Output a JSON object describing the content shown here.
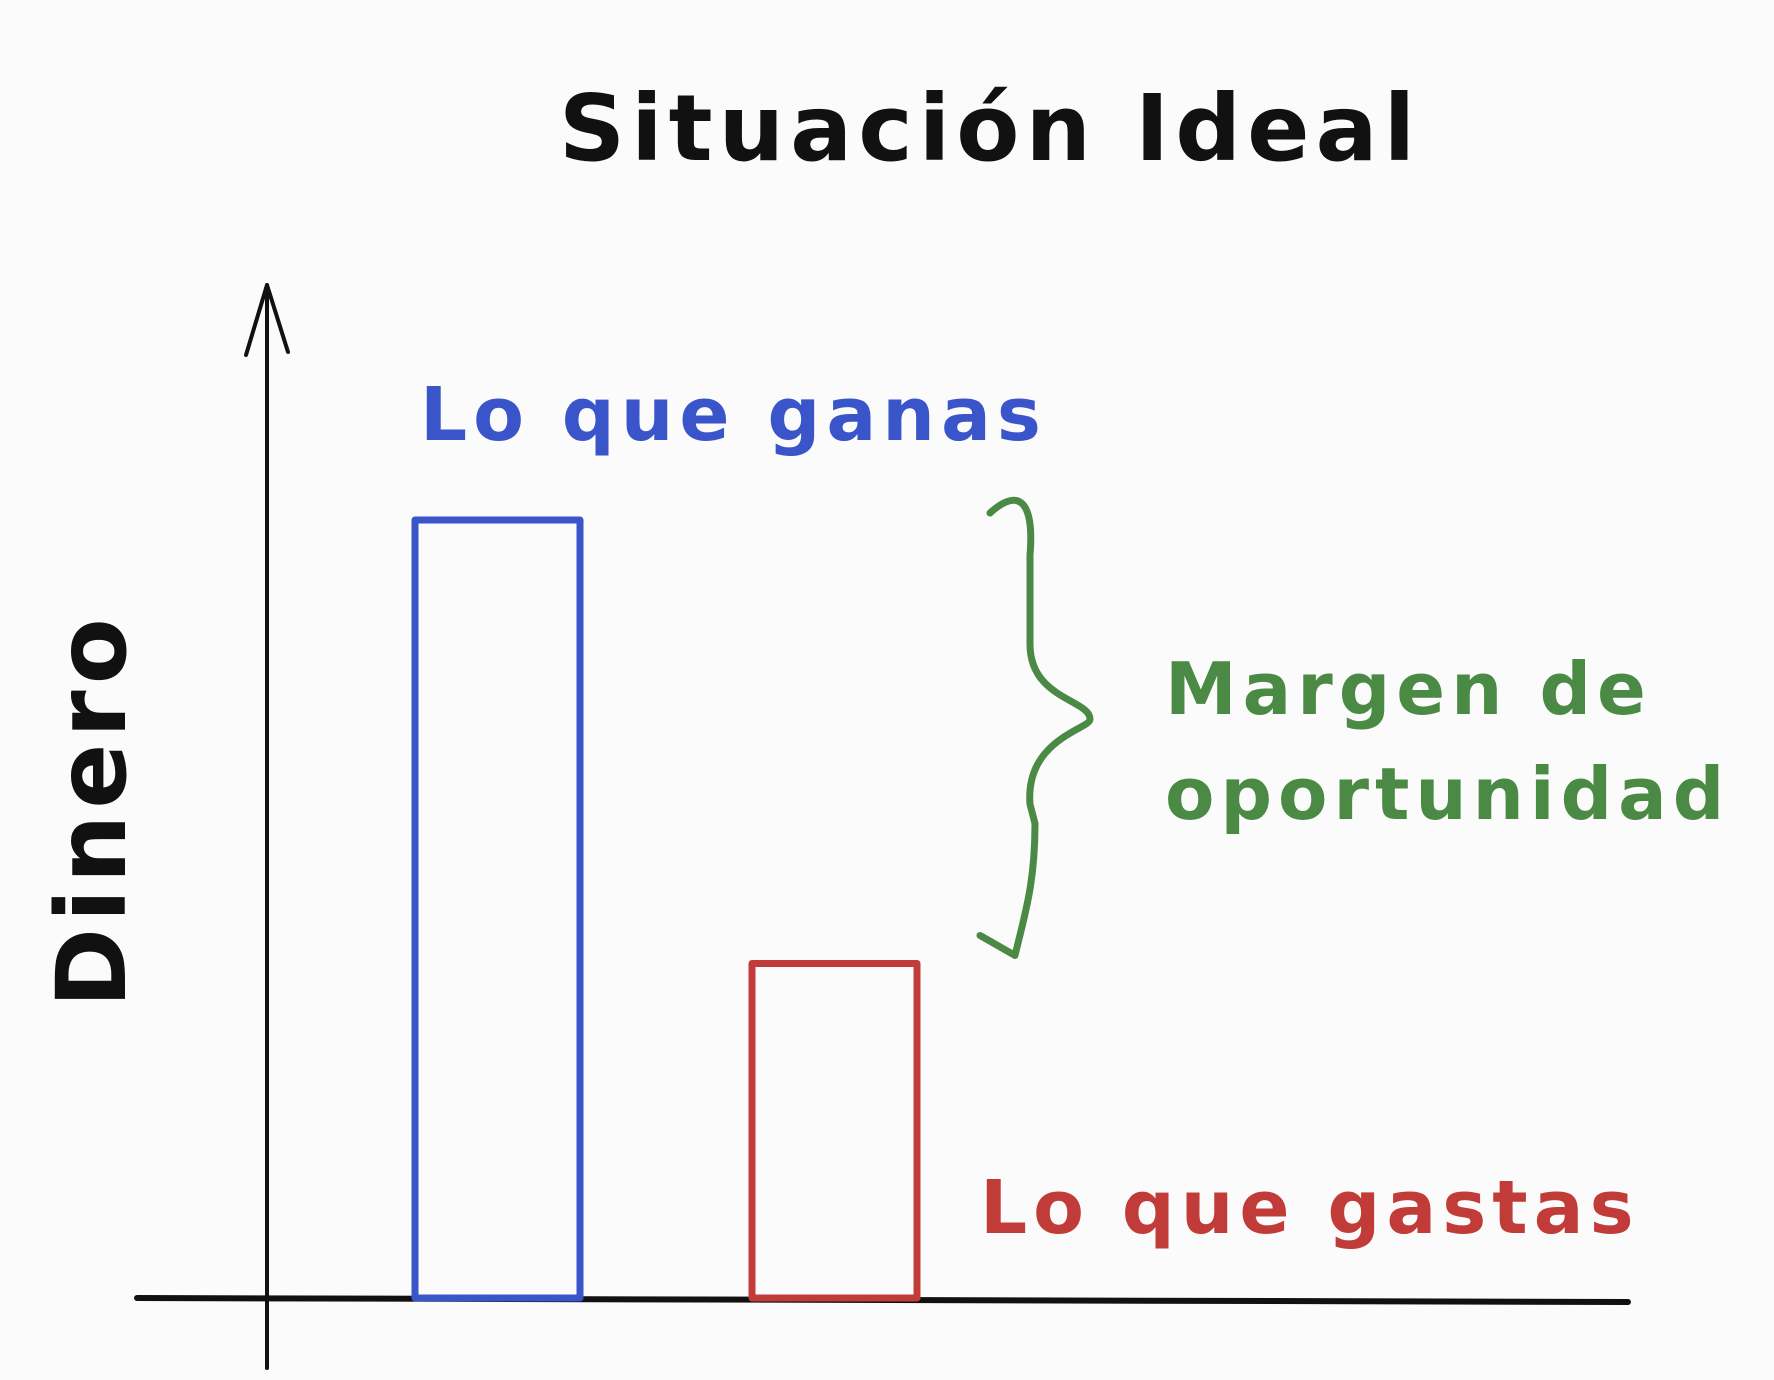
{
  "chart_data": {
    "type": "bar",
    "title": "Situación Ideal",
    "ylabel": "Dinero",
    "xlabel": "",
    "categories": [
      "Lo que ganas",
      "Lo que gastas"
    ],
    "values": [
      100,
      43
    ],
    "ylim": [
      0,
      130
    ],
    "colors": [
      "#3a55c9",
      "#c13c38"
    ],
    "annotation": {
      "text_line1": "Margen de",
      "text_line2": "oportunidad",
      "color": "#4a8a44",
      "between": [
        43,
        100
      ]
    },
    "grid": false,
    "legend": "none",
    "axis_color": "#111111"
  }
}
